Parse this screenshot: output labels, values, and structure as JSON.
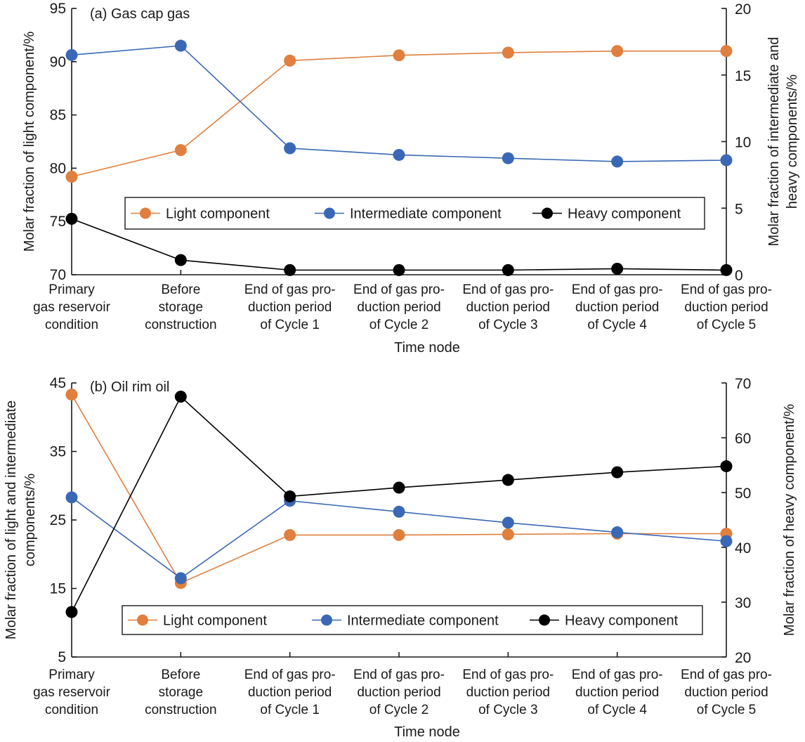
{
  "chart_data": [
    {
      "type": "line",
      "title": "(a) Gas cap gas",
      "xlabel": "Time node",
      "ylabel_left": "Molar fraction of light component/%",
      "ylabel_right": [
        "Molar fraction of intermediate and",
        "heavy components/%"
      ],
      "categories": [
        [
          "Primary",
          "gas reservoir",
          "condition"
        ],
        [
          "Before",
          "storage",
          "construction"
        ],
        [
          "End of gas pro-",
          "duction period",
          "of Cycle 1"
        ],
        [
          "End of gas pro-",
          "duction period",
          "of Cycle 2"
        ],
        [
          "End of gas pro-",
          "duction period",
          "of Cycle 3"
        ],
        [
          "End of gas pro-",
          "duction period",
          "of Cycle 4"
        ],
        [
          "End of gas pro-",
          "duction period",
          "of Cycle 5"
        ]
      ],
      "ylim_left": [
        70,
        95
      ],
      "yticks_left": [
        70,
        75,
        80,
        85,
        90,
        95
      ],
      "ylim_right": [
        0,
        20
      ],
      "yticks_right": [
        0,
        5,
        10,
        15,
        20
      ],
      "grid": false,
      "legend": "inside-lower-center",
      "series": [
        {
          "name": "Light component",
          "axis": "left",
          "color": "#E07F3E",
          "values": [
            79.2,
            81.7,
            90.1,
            90.6,
            90.85,
            91.0,
            91.0
          ]
        },
        {
          "name": "Intermediate component",
          "axis": "right",
          "color": "#3A68B5",
          "values": [
            16.5,
            17.2,
            9.5,
            9.0,
            8.75,
            8.5,
            8.6
          ]
        },
        {
          "name": "Heavy component",
          "axis": "right",
          "color": "#000000",
          "values": [
            4.2,
            1.1,
            0.35,
            0.35,
            0.35,
            0.45,
            0.35
          ]
        }
      ]
    },
    {
      "type": "line",
      "title": "(b) Oil rim oil",
      "xlabel": "Time node",
      "ylabel_left": [
        "Molar fraction of light and intermediate",
        "components/%"
      ],
      "ylabel_right": [
        "Molar fraction of heavy component/%"
      ],
      "categories": [
        [
          "Primary",
          "gas reservoir",
          "condition"
        ],
        [
          "Before",
          "storage",
          "construction"
        ],
        [
          "End of gas pro-",
          "duction period",
          "of Cycle 1"
        ],
        [
          "End of gas pro-",
          "duction period",
          "of Cycle 2"
        ],
        [
          "End of gas pro-",
          "duction period",
          "of Cycle 3"
        ],
        [
          "End of gas pro-",
          "duction period",
          "of Cycle 4"
        ],
        [
          "End of gas pro-",
          "duction period",
          "of Cycle 5"
        ]
      ],
      "ylim_left": [
        5,
        45
      ],
      "yticks_left": [
        5,
        15,
        25,
        35,
        45
      ],
      "ylim_right": [
        20,
        70
      ],
      "yticks_right": [
        20,
        30,
        40,
        50,
        60,
        70
      ],
      "grid": false,
      "legend": "inside-lower-center",
      "series": [
        {
          "name": "Light component",
          "axis": "left",
          "color": "#E07F3E",
          "values": [
            43.3,
            15.8,
            22.8,
            22.8,
            22.9,
            23.0,
            23.0
          ]
        },
        {
          "name": "Intermediate component",
          "axis": "left",
          "color": "#3A68B5",
          "values": [
            28.3,
            16.5,
            27.8,
            26.2,
            24.6,
            23.2,
            21.9
          ]
        },
        {
          "name": "Heavy component",
          "axis": "right",
          "color": "#000000",
          "values": [
            28.2,
            67.5,
            49.3,
            50.9,
            52.3,
            53.7,
            54.8
          ]
        }
      ]
    }
  ]
}
